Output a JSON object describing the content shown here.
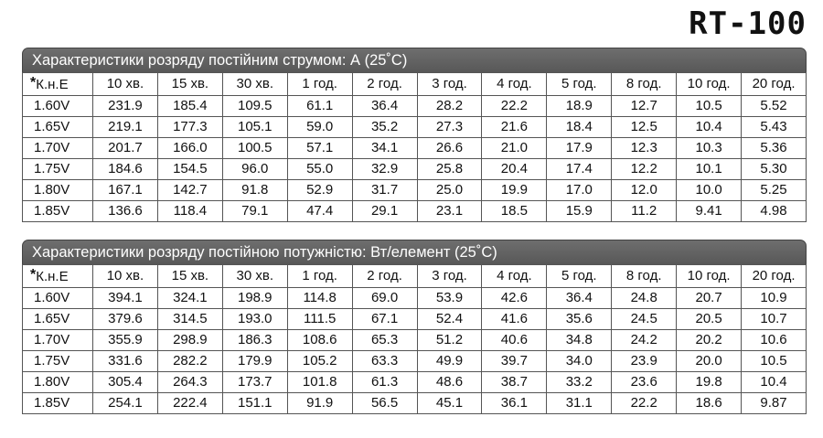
{
  "model": "RT-100",
  "tables": [
    {
      "title": "Характеристики розряду постійним струмом: А (25˚С)",
      "header_first": "К.н.Е",
      "header_star": "*",
      "headers": [
        "10 хв.",
        "15 хв.",
        "30 хв.",
        "1 год.",
        "2 год.",
        "3 год.",
        "4 год.",
        "5 год.",
        "8 год.",
        "10 год.",
        "20 год."
      ],
      "rows": [
        {
          "label": "1.60V",
          "values": [
            "231.9",
            "185.4",
            "109.5",
            "61.1",
            "36.4",
            "28.2",
            "22.2",
            "18.9",
            "12.7",
            "10.5",
            "5.52"
          ]
        },
        {
          "label": "1.65V",
          "values": [
            "219.1",
            "177.3",
            "105.1",
            "59.0",
            "35.2",
            "27.3",
            "21.6",
            "18.4",
            "12.5",
            "10.4",
            "5.43"
          ]
        },
        {
          "label": "1.70V",
          "values": [
            "201.7",
            "166.0",
            "100.5",
            "57.1",
            "34.1",
            "26.6",
            "21.0",
            "17.9",
            "12.3",
            "10.3",
            "5.36"
          ]
        },
        {
          "label": "1.75V",
          "values": [
            "184.6",
            "154.5",
            "96.0",
            "55.0",
            "32.9",
            "25.8",
            "20.4",
            "17.4",
            "12.2",
            "10.1",
            "5.30"
          ]
        },
        {
          "label": "1.80V",
          "values": [
            "167.1",
            "142.7",
            "91.8",
            "52.9",
            "31.7",
            "25.0",
            "19.9",
            "17.0",
            "12.0",
            "10.0",
            "5.25"
          ]
        },
        {
          "label": "1.85V",
          "values": [
            "136.6",
            "118.4",
            "79.1",
            "47.4",
            "29.1",
            "23.1",
            "18.5",
            "15.9",
            "11.2",
            "9.41",
            "4.98"
          ]
        }
      ]
    },
    {
      "title": "Характеристики розряду постійною потужністю: Вт/елемент (25˚С)",
      "header_first": "К.н.Е",
      "header_star": "*",
      "headers": [
        "10 хв.",
        "15 хв.",
        "30 хв.",
        "1 год.",
        "2 год.",
        "3 год.",
        "4 год.",
        "5 год.",
        "8 год.",
        "10 год.",
        "20 год."
      ],
      "rows": [
        {
          "label": "1.60V",
          "values": [
            "394.1",
            "324.1",
            "198.9",
            "114.8",
            "69.0",
            "53.9",
            "42.6",
            "36.4",
            "24.8",
            "20.7",
            "10.9"
          ]
        },
        {
          "label": "1.65V",
          "values": [
            "379.6",
            "314.5",
            "193.0",
            "111.5",
            "67.1",
            "52.4",
            "41.6",
            "35.6",
            "24.5",
            "20.5",
            "10.7"
          ]
        },
        {
          "label": "1.70V",
          "values": [
            "355.9",
            "298.9",
            "186.3",
            "108.6",
            "65.3",
            "51.2",
            "40.6",
            "34.8",
            "24.2",
            "20.2",
            "10.6"
          ]
        },
        {
          "label": "1.75V",
          "values": [
            "331.6",
            "282.2",
            "179.9",
            "105.2",
            "63.3",
            "49.9",
            "39.7",
            "34.0",
            "23.9",
            "20.0",
            "10.5"
          ]
        },
        {
          "label": "1.80V",
          "values": [
            "305.4",
            "264.3",
            "173.7",
            "101.8",
            "61.3",
            "48.6",
            "38.7",
            "33.2",
            "23.6",
            "19.8",
            "10.4"
          ]
        },
        {
          "label": "1.85V",
          "values": [
            "254.1",
            "222.4",
            "151.1",
            "91.9",
            "56.5",
            "45.1",
            "36.1",
            "31.1",
            "22.2",
            "18.6",
            "9.87"
          ]
        }
      ]
    }
  ]
}
